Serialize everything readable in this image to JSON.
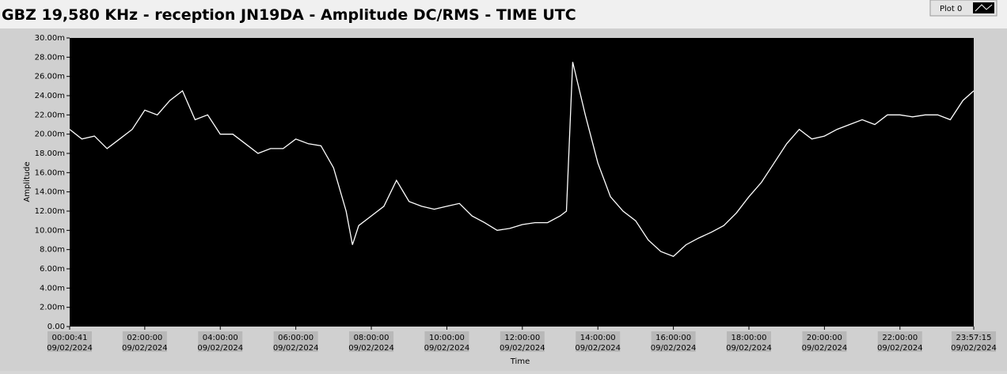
{
  "chart_data": {
    "type": "line",
    "title": "GBZ  19,580 KHz - reception JN19DA -  Amplitude DC/RMS   - TIME UTC",
    "x_label": "Time",
    "y_label": "Amplitude",
    "legend": "Plot 0",
    "x": [
      "00:00:41",
      "00:20:00",
      "00:40:00",
      "01:00:00",
      "01:20:00",
      "01:40:00",
      "02:00:00",
      "02:20:00",
      "02:40:00",
      "03:00:00",
      "03:20:00",
      "03:40:00",
      "04:00:00",
      "04:20:00",
      "04:40:00",
      "05:00:00",
      "05:20:00",
      "05:40:00",
      "06:00:00",
      "06:20:00",
      "06:40:00",
      "07:00:00",
      "07:20:00",
      "07:30:00",
      "07:40:00",
      "08:00:00",
      "08:20:00",
      "08:40:00",
      "09:00:00",
      "09:20:00",
      "09:40:00",
      "10:00:00",
      "10:20:00",
      "10:40:00",
      "11:00:00",
      "11:20:00",
      "11:40:00",
      "12:00:00",
      "12:20:00",
      "12:40:00",
      "13:00:00",
      "13:10:00",
      "13:20:00",
      "13:40:00",
      "14:00:00",
      "14:20:00",
      "14:40:00",
      "15:00:00",
      "15:20:00",
      "15:40:00",
      "16:00:00",
      "16:20:00",
      "16:40:00",
      "17:00:00",
      "17:20:00",
      "17:40:00",
      "18:00:00",
      "18:20:00",
      "18:40:00",
      "19:00:00",
      "19:20:00",
      "19:40:00",
      "20:00:00",
      "20:20:00",
      "20:40:00",
      "21:00:00",
      "21:20:00",
      "21:40:00",
      "22:00:00",
      "22:20:00",
      "22:40:00",
      "23:00:00",
      "23:20:00",
      "23:40:00",
      "23:57:15"
    ],
    "series": [
      {
        "name": "Plot 0",
        "color": "#ffffff",
        "values": [
          0.0205,
          0.0195,
          0.0198,
          0.0185,
          0.0195,
          0.0205,
          0.0225,
          0.022,
          0.0235,
          0.0245,
          0.0215,
          0.022,
          0.02,
          0.02,
          0.019,
          0.018,
          0.0185,
          0.0185,
          0.0195,
          0.019,
          0.0188,
          0.0165,
          0.012,
          0.0085,
          0.0105,
          0.0115,
          0.0125,
          0.0152,
          0.013,
          0.0125,
          0.0122,
          0.0125,
          0.0128,
          0.0115,
          0.0108,
          0.01,
          0.0102,
          0.0106,
          0.0108,
          0.0108,
          0.0115,
          0.012,
          0.0275,
          0.022,
          0.017,
          0.0135,
          0.012,
          0.011,
          0.009,
          0.0078,
          0.0073,
          0.0085,
          0.0092,
          0.0098,
          0.0105,
          0.0118,
          0.0135,
          0.015,
          0.017,
          0.019,
          0.0205,
          0.0195,
          0.0198,
          0.0205,
          0.021,
          0.0215,
          0.021,
          0.022,
          0.022,
          0.0218,
          0.022,
          0.022,
          0.0215,
          0.0235,
          0.0245
        ]
      }
    ],
    "xlim": [
      "00:00:41",
      "23:57:15"
    ],
    "xticks": [
      "00:00:41",
      "02:00:00",
      "04:00:00",
      "06:00:00",
      "08:00:00",
      "10:00:00",
      "12:00:00",
      "14:00:00",
      "16:00:00",
      "18:00:00",
      "20:00:00",
      "22:00:00",
      "23:57:15"
    ],
    "xtick_dates": [
      "09/02/2024",
      "09/02/2024",
      "09/02/2024",
      "09/02/2024",
      "09/02/2024",
      "09/02/2024",
      "09/02/2024",
      "09/02/2024",
      "09/02/2024",
      "09/02/2024",
      "09/02/2024",
      "09/02/2024",
      "09/02/2024"
    ],
    "ylim": [
      0,
      0.03
    ],
    "yticks": [
      {
        "value": 0,
        "label": "0.00"
      },
      {
        "value": 0.002,
        "label": "2.00m"
      },
      {
        "value": 0.004,
        "label": "4.00m"
      },
      {
        "value": 0.006,
        "label": "6.00m"
      },
      {
        "value": 0.008,
        "label": "8.00m"
      },
      {
        "value": 0.01,
        "label": "10.00m"
      },
      {
        "value": 0.012,
        "label": "12.00m"
      },
      {
        "value": 0.014,
        "label": "14.00m"
      },
      {
        "value": 0.016,
        "label": "16.00m"
      },
      {
        "value": 0.018,
        "label": "18.00m"
      },
      {
        "value": 0.02,
        "label": "20.00m"
      },
      {
        "value": 0.022,
        "label": "22.00m"
      },
      {
        "value": 0.024,
        "label": "24.00m"
      },
      {
        "value": 0.026,
        "label": "26.00m"
      },
      {
        "value": 0.028,
        "label": "28.00m"
      },
      {
        "value": 0.03,
        "label": "30.00m"
      }
    ],
    "grid": false
  }
}
